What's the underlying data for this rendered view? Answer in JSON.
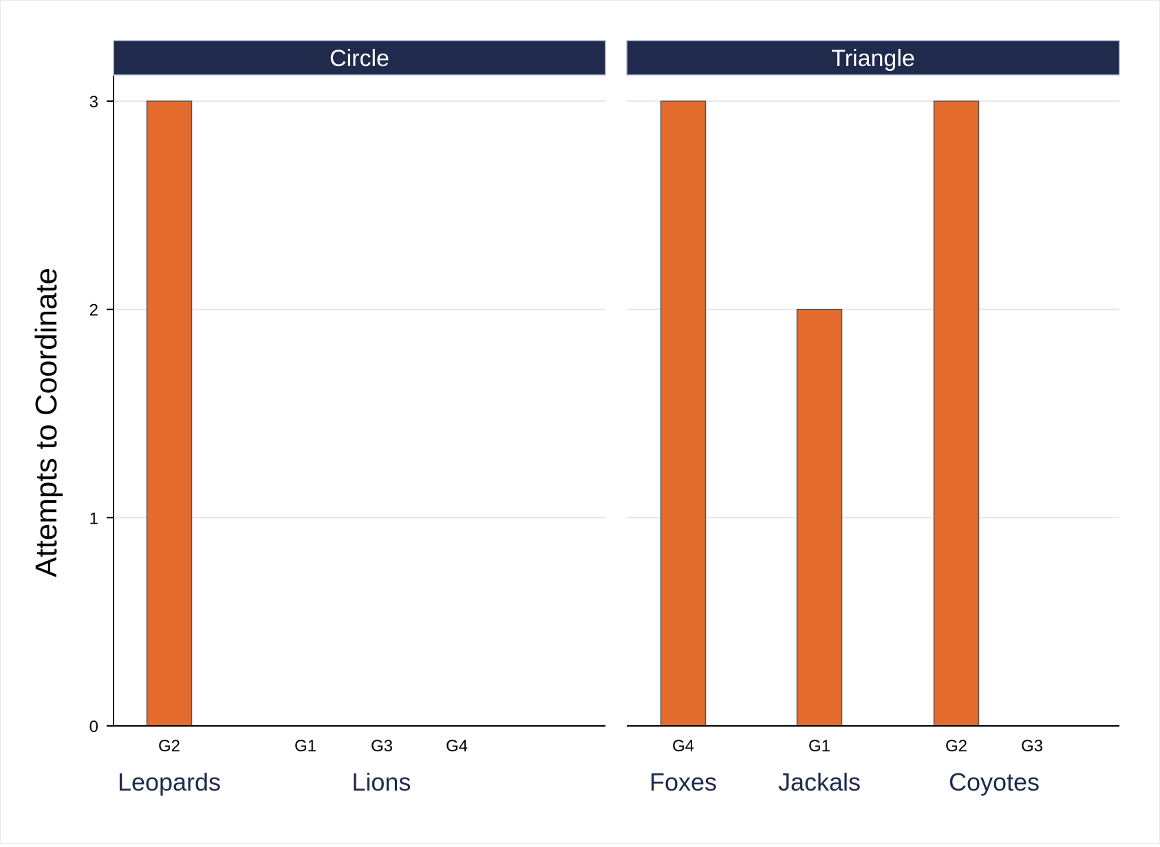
{
  "chart_data": {
    "type": "bar",
    "ylabel": "Attempts to Coordinate",
    "ylim": [
      0,
      3
    ],
    "yticks": [
      "0",
      "1",
      "2",
      "3"
    ],
    "grid": true,
    "colors": {
      "bar": "#E46B2E",
      "bar_edge": "#555555",
      "panel_header": "#1F2A4D",
      "panel_header_text": "#FFFFFF",
      "group_label": "#1F2A4D",
      "gridline": "#E6E6E6",
      "axis": "#000000"
    },
    "panels": [
      {
        "title": "Circle",
        "groups": [
          {
            "name": "Leopards",
            "bars": [
              {
                "label": "G2",
                "value": 3
              }
            ]
          },
          {
            "name": "Lions",
            "bars": [
              {
                "label": "G1",
                "value": 0
              },
              {
                "label": "G3",
                "value": 0
              },
              {
                "label": "G4",
                "value": 0
              }
            ]
          }
        ]
      },
      {
        "title": "Triangle",
        "groups": [
          {
            "name": "Foxes",
            "bars": [
              {
                "label": "G4",
                "value": 3
              }
            ]
          },
          {
            "name": "Jackals",
            "bars": [
              {
                "label": "G1",
                "value": 2
              }
            ]
          },
          {
            "name": "Coyotes",
            "bars": [
              {
                "label": "G2",
                "value": 3
              },
              {
                "label": "G3",
                "value": 0
              }
            ]
          }
        ]
      }
    ]
  }
}
